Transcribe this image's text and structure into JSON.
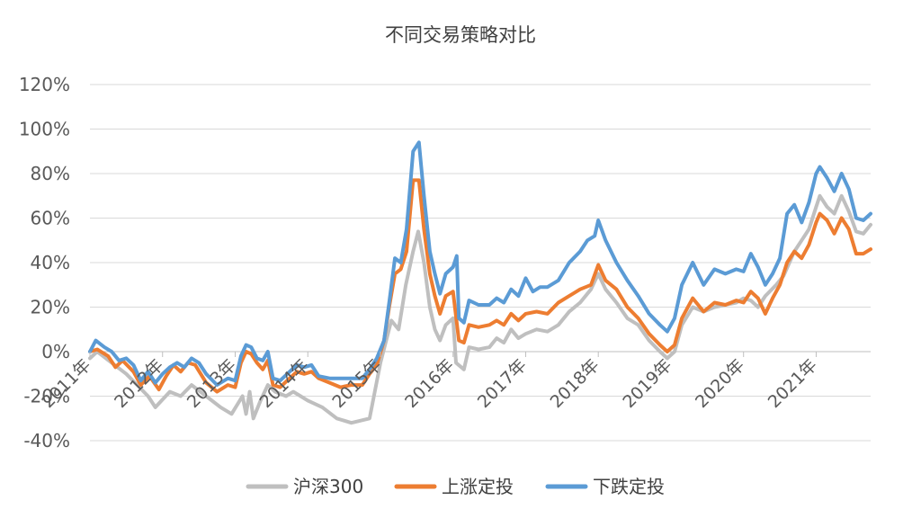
{
  "chart_data": {
    "type": "line",
    "title": "不同交易策略对比",
    "xlabel": "",
    "ylabel": "",
    "y_tick_labels": [
      "120%",
      "100%",
      "80%",
      "60%",
      "40%",
      "20%",
      "0%",
      "-20%",
      "-40%"
    ],
    "y_tick_values": [
      120,
      100,
      80,
      60,
      40,
      20,
      0,
      -20,
      -40
    ],
    "ylim": [
      -40,
      120
    ],
    "xlim": [
      2011.0,
      2021.75
    ],
    "x_tick_labels": [
      "2011年",
      "2012年",
      "2013年",
      "2014年",
      "2015年",
      "2016年",
      "2017年",
      "2018年",
      "2019年",
      "2020年",
      "2021年"
    ],
    "x_tick_values": [
      2011,
      2012,
      2013,
      2014,
      2015,
      2016,
      2017,
      2018,
      2019,
      2020,
      2021
    ],
    "grid": true,
    "legend_position": "bottom",
    "series": [
      {
        "name": "沪深300",
        "color": "#bfbfbf",
        "points": [
          [
            2011.0,
            -3
          ],
          [
            2011.1,
            0
          ],
          [
            2011.3,
            -5
          ],
          [
            2011.5,
            -10
          ],
          [
            2011.65,
            -15
          ],
          [
            2011.8,
            -20
          ],
          [
            2011.9,
            -25
          ],
          [
            2012.1,
            -18
          ],
          [
            2012.25,
            -20
          ],
          [
            2012.4,
            -15
          ],
          [
            2012.6,
            -20
          ],
          [
            2012.8,
            -25
          ],
          [
            2012.95,
            -28
          ],
          [
            2013.1,
            -20
          ],
          [
            2013.15,
            -28
          ],
          [
            2013.2,
            -18
          ],
          [
            2013.25,
            -30
          ],
          [
            2013.35,
            -22
          ],
          [
            2013.45,
            -15
          ],
          [
            2013.55,
            -18
          ],
          [
            2013.7,
            -20
          ],
          [
            2013.8,
            -18
          ],
          [
            2013.9,
            -20
          ],
          [
            2014.0,
            -22
          ],
          [
            2014.2,
            -25
          ],
          [
            2014.4,
            -30
          ],
          [
            2014.6,
            -32
          ],
          [
            2014.85,
            -30
          ],
          [
            2015.0,
            -5
          ],
          [
            2015.08,
            5
          ],
          [
            2015.15,
            14
          ],
          [
            2015.25,
            10
          ],
          [
            2015.35,
            30
          ],
          [
            2015.45,
            45
          ],
          [
            2015.52,
            54
          ],
          [
            2015.6,
            40
          ],
          [
            2015.68,
            20
          ],
          [
            2015.75,
            10
          ],
          [
            2015.82,
            5
          ],
          [
            2015.9,
            12
          ],
          [
            2016.0,
            15
          ],
          [
            2016.04,
            -5
          ],
          [
            2016.15,
            -8
          ],
          [
            2016.22,
            2
          ],
          [
            2016.35,
            1
          ],
          [
            2016.5,
            2
          ],
          [
            2016.6,
            6
          ],
          [
            2016.7,
            4
          ],
          [
            2016.8,
            10
          ],
          [
            2016.9,
            6
          ],
          [
            2017.0,
            8
          ],
          [
            2017.15,
            10
          ],
          [
            2017.3,
            9
          ],
          [
            2017.45,
            12
          ],
          [
            2017.6,
            18
          ],
          [
            2017.75,
            22
          ],
          [
            2017.9,
            28
          ],
          [
            2018.0,
            35
          ],
          [
            2018.1,
            28
          ],
          [
            2018.25,
            22
          ],
          [
            2018.4,
            15
          ],
          [
            2018.55,
            12
          ],
          [
            2018.7,
            5
          ],
          [
            2018.85,
            0
          ],
          [
            2018.95,
            -3
          ],
          [
            2019.05,
            0
          ],
          [
            2019.15,
            12
          ],
          [
            2019.3,
            20
          ],
          [
            2019.45,
            18
          ],
          [
            2019.6,
            20
          ],
          [
            2019.75,
            21
          ],
          [
            2019.9,
            22
          ],
          [
            2020.0,
            24
          ],
          [
            2020.1,
            23
          ],
          [
            2020.2,
            20
          ],
          [
            2020.3,
            25
          ],
          [
            2020.45,
            30
          ],
          [
            2020.55,
            34
          ],
          [
            2020.7,
            45
          ],
          [
            2020.8,
            50
          ],
          [
            2020.9,
            55
          ],
          [
            2021.0,
            65
          ],
          [
            2021.05,
            70
          ],
          [
            2021.15,
            65
          ],
          [
            2021.25,
            62
          ],
          [
            2021.35,
            70
          ],
          [
            2021.45,
            63
          ],
          [
            2021.55,
            54
          ],
          [
            2021.65,
            53
          ],
          [
            2021.75,
            57
          ]
        ]
      },
      {
        "name": "上涨定投",
        "color": "#ed7d31",
        "points": [
          [
            2011.0,
            0
          ],
          [
            2011.1,
            1
          ],
          [
            2011.25,
            -2
          ],
          [
            2011.35,
            -7
          ],
          [
            2011.45,
            -4
          ],
          [
            2011.6,
            -9
          ],
          [
            2011.7,
            -15
          ],
          [
            2011.82,
            -11
          ],
          [
            2011.95,
            -17
          ],
          [
            2012.05,
            -11
          ],
          [
            2012.15,
            -6
          ],
          [
            2012.25,
            -9
          ],
          [
            2012.35,
            -5
          ],
          [
            2012.45,
            -6
          ],
          [
            2012.6,
            -14
          ],
          [
            2012.75,
            -18
          ],
          [
            2012.9,
            -15
          ],
          [
            2013.0,
            -16
          ],
          [
            2013.08,
            -5
          ],
          [
            2013.15,
            0
          ],
          [
            2013.22,
            -1
          ],
          [
            2013.3,
            -5
          ],
          [
            2013.38,
            -8
          ],
          [
            2013.45,
            -4
          ],
          [
            2013.52,
            -15
          ],
          [
            2013.62,
            -16
          ],
          [
            2013.75,
            -12
          ],
          [
            2013.85,
            -9
          ],
          [
            2013.95,
            -10
          ],
          [
            2014.05,
            -9
          ],
          [
            2014.15,
            -12
          ],
          [
            2014.3,
            -14
          ],
          [
            2014.45,
            -16
          ],
          [
            2014.6,
            -15
          ],
          [
            2014.75,
            -15
          ],
          [
            2014.85,
            -10
          ],
          [
            2014.95,
            -6
          ],
          [
            2015.05,
            5
          ],
          [
            2015.12,
            20
          ],
          [
            2015.2,
            35
          ],
          [
            2015.28,
            37
          ],
          [
            2015.36,
            45
          ],
          [
            2015.45,
            77
          ],
          [
            2015.53,
            77
          ],
          [
            2015.6,
            55
          ],
          [
            2015.68,
            35
          ],
          [
            2015.75,
            25
          ],
          [
            2015.82,
            17
          ],
          [
            2015.9,
            25
          ],
          [
            2016.0,
            27
          ],
          [
            2016.08,
            5
          ],
          [
            2016.15,
            4
          ],
          [
            2016.22,
            12
          ],
          [
            2016.35,
            11
          ],
          [
            2016.5,
            12
          ],
          [
            2016.6,
            14
          ],
          [
            2016.7,
            12
          ],
          [
            2016.8,
            17
          ],
          [
            2016.9,
            14
          ],
          [
            2017.0,
            17
          ],
          [
            2017.15,
            18
          ],
          [
            2017.3,
            17
          ],
          [
            2017.45,
            22
          ],
          [
            2017.6,
            25
          ],
          [
            2017.75,
            28
          ],
          [
            2017.9,
            30
          ],
          [
            2018.0,
            39
          ],
          [
            2018.1,
            32
          ],
          [
            2018.25,
            28
          ],
          [
            2018.4,
            20
          ],
          [
            2018.55,
            15
          ],
          [
            2018.7,
            8
          ],
          [
            2018.85,
            3
          ],
          [
            2018.95,
            0
          ],
          [
            2019.05,
            3
          ],
          [
            2019.15,
            15
          ],
          [
            2019.3,
            24
          ],
          [
            2019.45,
            18
          ],
          [
            2019.6,
            22
          ],
          [
            2019.75,
            21
          ],
          [
            2019.9,
            23
          ],
          [
            2020.0,
            22
          ],
          [
            2020.1,
            27
          ],
          [
            2020.2,
            24
          ],
          [
            2020.3,
            17
          ],
          [
            2020.4,
            24
          ],
          [
            2020.5,
            30
          ],
          [
            2020.6,
            40
          ],
          [
            2020.7,
            45
          ],
          [
            2020.8,
            42
          ],
          [
            2020.9,
            48
          ],
          [
            2021.0,
            58
          ],
          [
            2021.05,
            62
          ],
          [
            2021.15,
            59
          ],
          [
            2021.25,
            53
          ],
          [
            2021.35,
            60
          ],
          [
            2021.45,
            55
          ],
          [
            2021.55,
            44
          ],
          [
            2021.65,
            44
          ],
          [
            2021.75,
            46
          ]
        ]
      },
      {
        "name": "下跌定投",
        "color": "#5b9bd5",
        "points": [
          [
            2011.0,
            0
          ],
          [
            2011.08,
            5
          ],
          [
            2011.2,
            2
          ],
          [
            2011.3,
            0
          ],
          [
            2011.4,
            -4
          ],
          [
            2011.5,
            -3
          ],
          [
            2011.6,
            -6
          ],
          [
            2011.7,
            -13
          ],
          [
            2011.8,
            -9
          ],
          [
            2011.9,
            -14
          ],
          [
            2012.0,
            -10
          ],
          [
            2012.1,
            -7
          ],
          [
            2012.2,
            -5
          ],
          [
            2012.3,
            -7
          ],
          [
            2012.4,
            -3
          ],
          [
            2012.5,
            -5
          ],
          [
            2012.6,
            -10
          ],
          [
            2012.75,
            -15
          ],
          [
            2012.9,
            -12
          ],
          [
            2013.0,
            -13
          ],
          [
            2013.08,
            -2
          ],
          [
            2013.15,
            3
          ],
          [
            2013.22,
            2
          ],
          [
            2013.3,
            -3
          ],
          [
            2013.38,
            -4
          ],
          [
            2013.45,
            0
          ],
          [
            2013.52,
            -12
          ],
          [
            2013.62,
            -13
          ],
          [
            2013.75,
            -9
          ],
          [
            2013.85,
            -6
          ],
          [
            2013.95,
            -7
          ],
          [
            2014.05,
            -6
          ],
          [
            2014.15,
            -11
          ],
          [
            2014.3,
            -12
          ],
          [
            2014.45,
            -12
          ],
          [
            2014.6,
            -12
          ],
          [
            2014.75,
            -12
          ],
          [
            2014.85,
            -8
          ],
          [
            2014.95,
            -3
          ],
          [
            2015.05,
            5
          ],
          [
            2015.12,
            22
          ],
          [
            2015.2,
            42
          ],
          [
            2015.28,
            40
          ],
          [
            2015.36,
            55
          ],
          [
            2015.45,
            90
          ],
          [
            2015.53,
            94
          ],
          [
            2015.6,
            70
          ],
          [
            2015.68,
            45
          ],
          [
            2015.75,
            35
          ],
          [
            2015.82,
            26
          ],
          [
            2015.9,
            35
          ],
          [
            2016.0,
            38
          ],
          [
            2016.05,
            43
          ],
          [
            2016.08,
            15
          ],
          [
            2016.15,
            13
          ],
          [
            2016.22,
            23
          ],
          [
            2016.35,
            21
          ],
          [
            2016.5,
            21
          ],
          [
            2016.6,
            24
          ],
          [
            2016.7,
            22
          ],
          [
            2016.8,
            28
          ],
          [
            2016.9,
            25
          ],
          [
            2017.0,
            33
          ],
          [
            2017.1,
            27
          ],
          [
            2017.2,
            29
          ],
          [
            2017.3,
            29
          ],
          [
            2017.45,
            32
          ],
          [
            2017.6,
            40
          ],
          [
            2017.75,
            45
          ],
          [
            2017.85,
            50
          ],
          [
            2017.95,
            52
          ],
          [
            2018.0,
            59
          ],
          [
            2018.1,
            50
          ],
          [
            2018.25,
            40
          ],
          [
            2018.4,
            32
          ],
          [
            2018.55,
            25
          ],
          [
            2018.7,
            17
          ],
          [
            2018.85,
            12
          ],
          [
            2018.95,
            9
          ],
          [
            2019.05,
            15
          ],
          [
            2019.15,
            30
          ],
          [
            2019.3,
            40
          ],
          [
            2019.45,
            30
          ],
          [
            2019.6,
            37
          ],
          [
            2019.75,
            35
          ],
          [
            2019.9,
            37
          ],
          [
            2020.0,
            36
          ],
          [
            2020.1,
            44
          ],
          [
            2020.2,
            38
          ],
          [
            2020.3,
            30
          ],
          [
            2020.4,
            35
          ],
          [
            2020.5,
            42
          ],
          [
            2020.6,
            62
          ],
          [
            2020.7,
            66
          ],
          [
            2020.8,
            58
          ],
          [
            2020.9,
            67
          ],
          [
            2021.0,
            80
          ],
          [
            2021.05,
            83
          ],
          [
            2021.15,
            78
          ],
          [
            2021.25,
            72
          ],
          [
            2021.35,
            80
          ],
          [
            2021.45,
            73
          ],
          [
            2021.55,
            60
          ],
          [
            2021.65,
            59
          ],
          [
            2021.75,
            62
          ]
        ]
      }
    ]
  }
}
